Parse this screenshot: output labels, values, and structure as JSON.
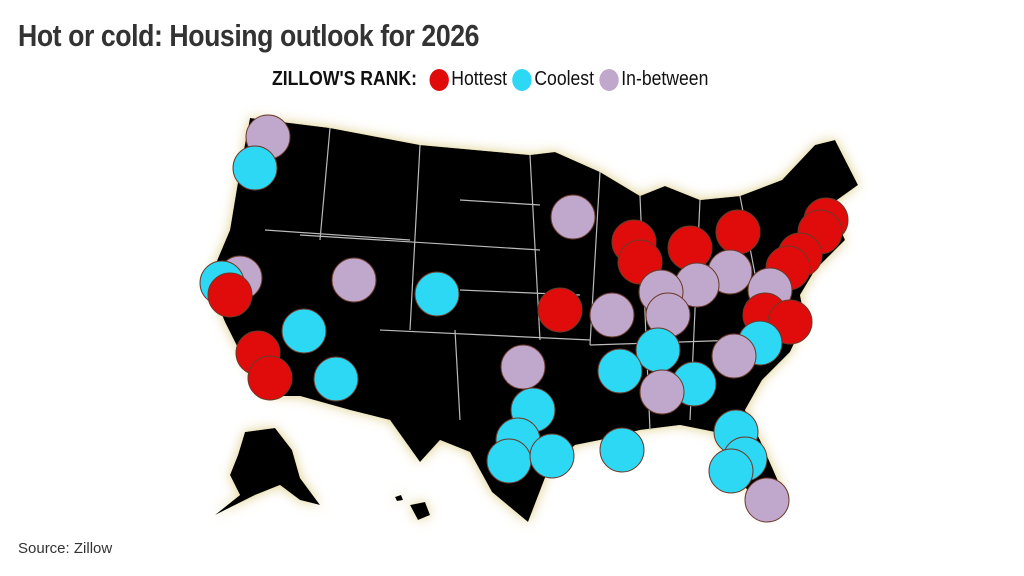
{
  "title": "Hot or cold: Housing outlook for 2026",
  "legend": {
    "label": "ZILLOW'S RANK:",
    "items": [
      {
        "key": "hot",
        "label": "Hottest",
        "color": "#e00b0b"
      },
      {
        "key": "cool",
        "label": "Coolest",
        "color": "#2dd8f5"
      },
      {
        "key": "mid",
        "label": "In-between",
        "color": "#c0a8cc"
      }
    ]
  },
  "source": "Source: Zillow",
  "map": {
    "land_color": "#000000",
    "border_color": "#cccccc",
    "glow_color": "#e8d9a0",
    "markers": [
      "mid",
      "cool",
      "mid",
      "cool",
      "hot",
      "mid",
      "cool",
      "cool",
      "hot",
      "hot",
      "cool",
      "mid",
      "hot",
      "hot",
      "hot",
      "hot",
      "hot",
      "hot",
      "hot",
      "hot",
      "mid",
      "mid",
      "mid",
      "mid",
      "mid",
      "hot",
      "hot",
      "mid",
      "hot",
      "cool",
      "cool",
      "mid",
      "mid",
      "cool",
      "cool",
      "mid",
      "cool",
      "cool",
      "cool",
      "cool",
      "cool",
      "cool",
      "cool",
      "cool",
      "mid"
    ]
  }
}
